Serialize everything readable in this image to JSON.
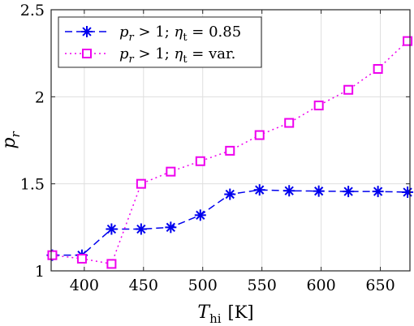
{
  "chart_data": {
    "type": "line",
    "xlabel": {
      "symbol": "T",
      "subscript": "hi",
      "unit": "[K]"
    },
    "ylabel": {
      "symbol": "p",
      "subscript": "r"
    },
    "xlim": [
      372,
      675
    ],
    "ylim": [
      1,
      2.5
    ],
    "xticks": [
      400,
      450,
      500,
      550,
      600,
      650
    ],
    "yticks": [
      1,
      1.5,
      2,
      2.5
    ],
    "grid": true,
    "legend_position": "top-left",
    "series": [
      {
        "name": "p_r > 1; η_t = 0.85",
        "name_parts": {
          "symbol": "p",
          "sub": "r",
          "rest": " > 1;  ",
          "eta": "η",
          "etasub": "t",
          "value": " = 0.85"
        },
        "color": "#0000ee",
        "line_style": "dashed",
        "marker": "asterisk",
        "x": [
          373,
          398,
          423,
          448,
          473,
          498,
          523,
          548,
          573,
          598,
          623,
          648,
          673
        ],
        "y": [
          1.09,
          1.09,
          1.24,
          1.24,
          1.25,
          1.32,
          1.44,
          1.465,
          1.46,
          1.458,
          1.456,
          1.456,
          1.452
        ]
      },
      {
        "name": "p_r > 1; η_t = var.",
        "name_parts": {
          "symbol": "p",
          "sub": "r",
          "rest": " > 1;  ",
          "eta": "η",
          "etasub": "t",
          "value": " = var."
        },
        "color": "#ee00ee",
        "line_style": "dotted",
        "marker": "square",
        "x": [
          373,
          398,
          423,
          448,
          473,
          498,
          523,
          548,
          573,
          598,
          623,
          648,
          673
        ],
        "y": [
          1.09,
          1.07,
          1.04,
          1.5,
          1.57,
          1.63,
          1.69,
          1.78,
          1.85,
          1.95,
          2.04,
          2.16,
          2.32
        ]
      }
    ]
  }
}
